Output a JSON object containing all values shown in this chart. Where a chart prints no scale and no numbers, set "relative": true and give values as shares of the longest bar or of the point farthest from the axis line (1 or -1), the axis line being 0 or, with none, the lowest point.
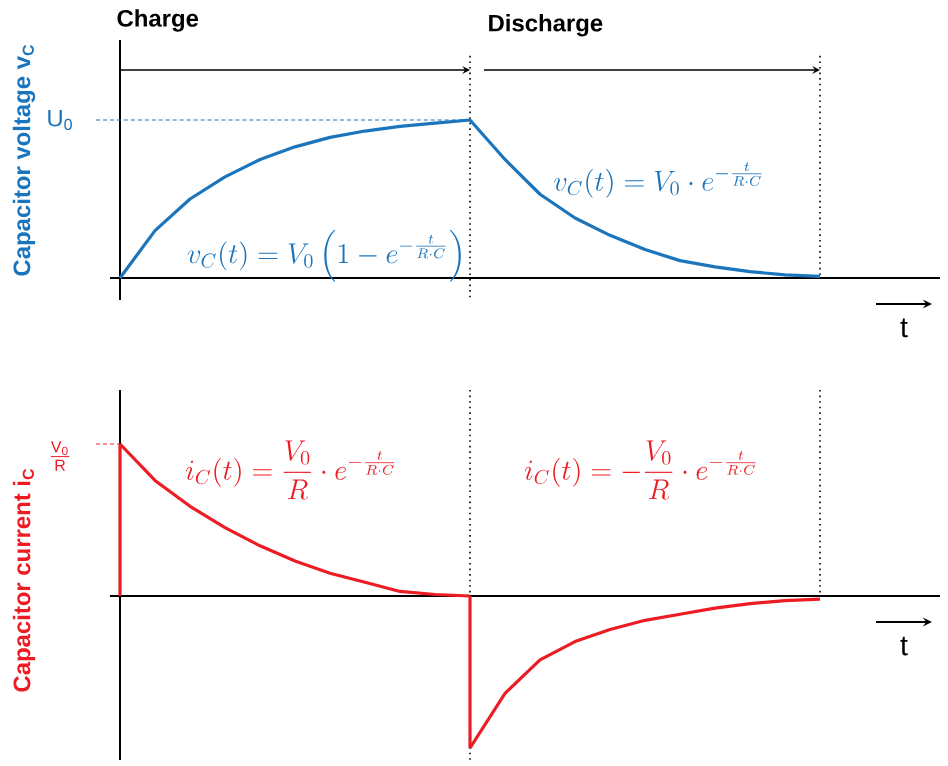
{
  "chart_data": [
    {
      "type": "line",
      "relative": true,
      "categories": [
        null,
        null,
        null,
        null,
        null,
        null,
        null,
        null,
        null,
        null,
        null,
        null,
        null,
        null,
        null,
        null,
        null,
        null,
        null,
        null,
        null
      ],
      "xlabel": "t",
      "ylabel": "Capacitor voltage v$_{C}$",
      "series": [
        {
          "color": "#1b75bc",
          "values": [
            0,
            0.3,
            0.5,
            0.64,
            0.75,
            0.83,
            0.89,
            0.93,
            0.96,
            0.98,
            1,
            0.75,
            0.53,
            0.38,
            0.27,
            0.18,
            0.11,
            0.07,
            0.04,
            0.02,
            0.01
          ]
        }
      ],
      "ref_lines": [
        {
          "axis": "y",
          "value": 1,
          "label": "\\mathrm{U_0}",
          "color": "#1b75bc",
          "line_style": "dashed"
        }
      ],
      "annotations": [
        "Charge",
        "Discharge",
        "v_C(t) = V_0\\left(1-e^{-\\frac{t}{R\\cdot C}}\\right)",
        "v_C(t) = V_0\\cdot e^{-\\frac{t}{R\\cdot C}}"
      ]
    },
    {
      "type": "line",
      "relative": true,
      "categories": [
        null,
        null,
        null,
        null,
        null,
        null,
        null,
        null,
        null,
        null,
        null,
        null,
        null,
        null,
        null,
        null,
        null,
        null,
        null,
        null,
        null
      ],
      "xlabel": "t",
      "ylabel": "Capacitor current i$_{C}$",
      "series": [
        {
          "color": "#ed1c24",
          "values": [
            1,
            0.76,
            0.59,
            0.45,
            0.33,
            0.23,
            0.15,
            0.09,
            0.03,
            0.01,
            0,
            null,
            null,
            null,
            null,
            null,
            null,
            null,
            null,
            null,
            null
          ]
        },
        {
          "color": "#ed1c24",
          "values": [
            null,
            null,
            null,
            null,
            null,
            null,
            null,
            null,
            null,
            null,
            -1,
            -0.64,
            -0.42,
            -0.3,
            -0.22,
            -0.16,
            -0.12,
            -0.08,
            -0.05,
            -0.03,
            -0.02
          ]
        }
      ],
      "ref_lines": [
        {
          "axis": "y",
          "value": 1,
          "label": "\\mathrm{\\frac{V_0}{R}}",
          "color": "#ed1c24",
          "line_style": "dashed"
        }
      ],
      "annotations": [
        "i_C(t) = \\frac{V_0}{R}\\cdot e^{-\\frac{t}{R\\cdot C}}",
        "i_C(t) = -\\frac{V_0}{R}\\cdot e^{-\\frac{t}{R\\cdot C}}"
      ]
    }
  ]
}
